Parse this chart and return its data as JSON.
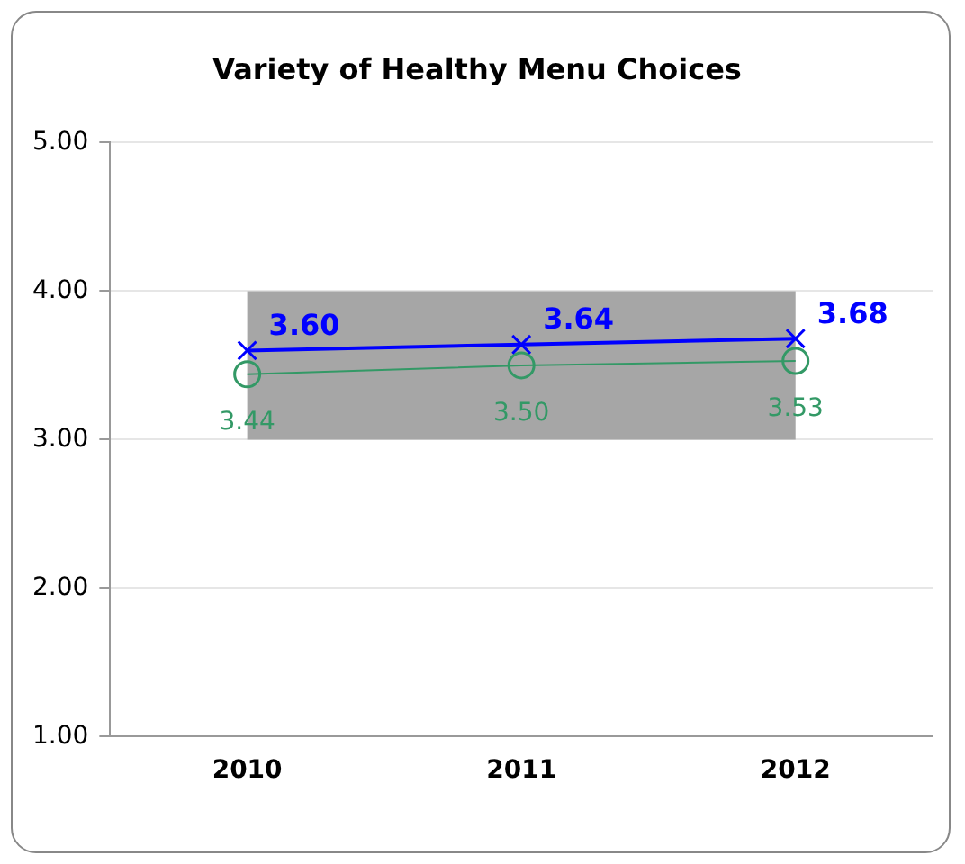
{
  "chart_data": {
    "type": "line",
    "title": "Variety of Healthy Menu Choices",
    "categories": [
      "2010",
      "2011",
      "2012"
    ],
    "series": [
      {
        "color": "#0000ff",
        "values": [
          3.6,
          3.64,
          3.68
        ],
        "value_labels": [
          "3.60",
          "3.64",
          "3.68"
        ],
        "marker": "cross"
      },
      {
        "color": "#339966",
        "values": [
          3.44,
          3.5,
          3.53
        ],
        "value_labels": [
          "3.44",
          "3.50",
          "3.53"
        ],
        "marker": "circle"
      }
    ],
    "ylim": [
      1,
      5
    ],
    "yticks": [
      {
        "value": 1,
        "label": "1.00"
      },
      {
        "value": 2,
        "label": "2.00"
      },
      {
        "value": 3,
        "label": "3.00"
      },
      {
        "value": 4,
        "label": "4.00"
      },
      {
        "value": 5,
        "label": "5.00"
      }
    ],
    "bands": [
      {
        "axis": "y",
        "from": 3,
        "to": 4,
        "color": "#a6a6a6"
      }
    ],
    "grid": "y",
    "legend": false
  }
}
